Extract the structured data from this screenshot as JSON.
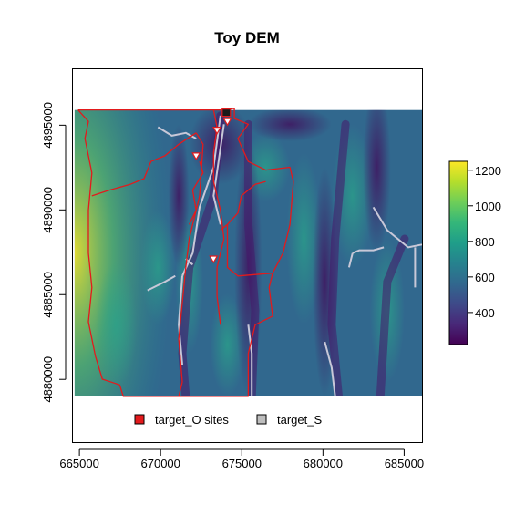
{
  "map": {
    "title": "Toy DEM",
    "extent": {
      "xmin": 664600,
      "xmax": 686100,
      "ymin": 4876300,
      "ymax": 4898300
    },
    "raster_extent": {
      "xmin": 664700,
      "xmax": 686100,
      "ymin": 4879000,
      "ymax": 4895900
    },
    "x_ticks": [
      665000,
      670000,
      675000,
      680000,
      685000
    ],
    "x_tick_labels": [
      "665000",
      "670000",
      "675000",
      "680000",
      "685000"
    ],
    "y_ticks": [
      4880000,
      4885000,
      4890000,
      4895000
    ],
    "y_tick_labels": [
      "4880000",
      "4885000",
      "4890000",
      "4895000"
    ]
  },
  "colorbar": {
    "min": 220,
    "max": 1250,
    "ticks": [
      400,
      600,
      800,
      1000,
      1200
    ],
    "tick_labels": [
      "400",
      "600",
      "800",
      "1000",
      "1200"
    ],
    "palette": [
      "#440154",
      "#482878",
      "#3e4a89",
      "#31688e",
      "#26828e",
      "#1f9e89",
      "#35b779",
      "#6ece58",
      "#b5de2b",
      "#fde725"
    ]
  },
  "legend": {
    "items": [
      {
        "label": "target_O sites",
        "color": "#e31a1c"
      },
      {
        "label": "target_S",
        "color": "#bebebe"
      }
    ]
  },
  "colors": {
    "boundary": "#e31a1c",
    "streams": "#c8c8d8",
    "site_marker": "#e31a1c"
  }
}
